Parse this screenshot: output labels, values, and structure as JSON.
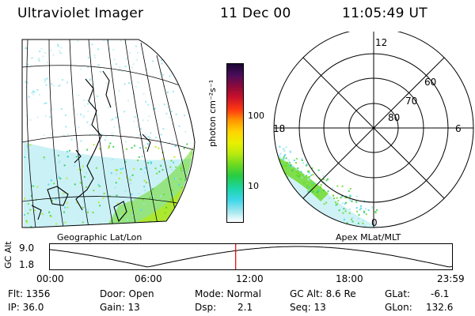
{
  "header": {
    "instrument": "Ultraviolet Imager",
    "date": "11 Dec 00",
    "time": "11:05:49 UT"
  },
  "colorbar": {
    "unit_label": "photon cm⁻²s⁻¹",
    "ticks": [
      "100",
      "10"
    ],
    "colors": [
      "#1a0833",
      "#4a0c5a",
      "#8a0a3a",
      "#c8102a",
      "#ff3a10",
      "#ff9a00",
      "#ffd400",
      "#e8f000",
      "#b8ea10",
      "#6ad820",
      "#26cc44",
      "#1cd6a8",
      "#3cd6e8",
      "#9ee6ee",
      "#ffffff"
    ]
  },
  "geo_map": {
    "label": "Geographic Lat/Lon"
  },
  "polar_plot": {
    "label": "Apex MLat/MLT",
    "mlt_labels": [
      "12",
      "18",
      "6",
      "0"
    ],
    "lat_labels": [
      "60",
      "70",
      "80"
    ]
  },
  "altitude_plot": {
    "ylabel": "GC Alt",
    "y_ticks": [
      "9.0",
      "1.8"
    ],
    "x_ticks": [
      "00:00",
      "06:00",
      "12:00",
      "18:00",
      "23:59"
    ],
    "current_time_fraction": 0.462,
    "marker_color": "#e00000"
  },
  "status": {
    "flt": "Flt: 1356",
    "ip": "IP: 36.0",
    "door": "Door: Open",
    "gain": "Gain: 13",
    "mode": "Mode: Normal",
    "dsp_label": "Dsp:",
    "dsp_value": "2.1",
    "gc_alt": "GC Alt: 8.6 Re",
    "seq": "Seq: 13",
    "glat_label": "GLat:",
    "glat_value": "-6.1",
    "glon_label": "GLon:",
    "glon_value": "132.6"
  }
}
